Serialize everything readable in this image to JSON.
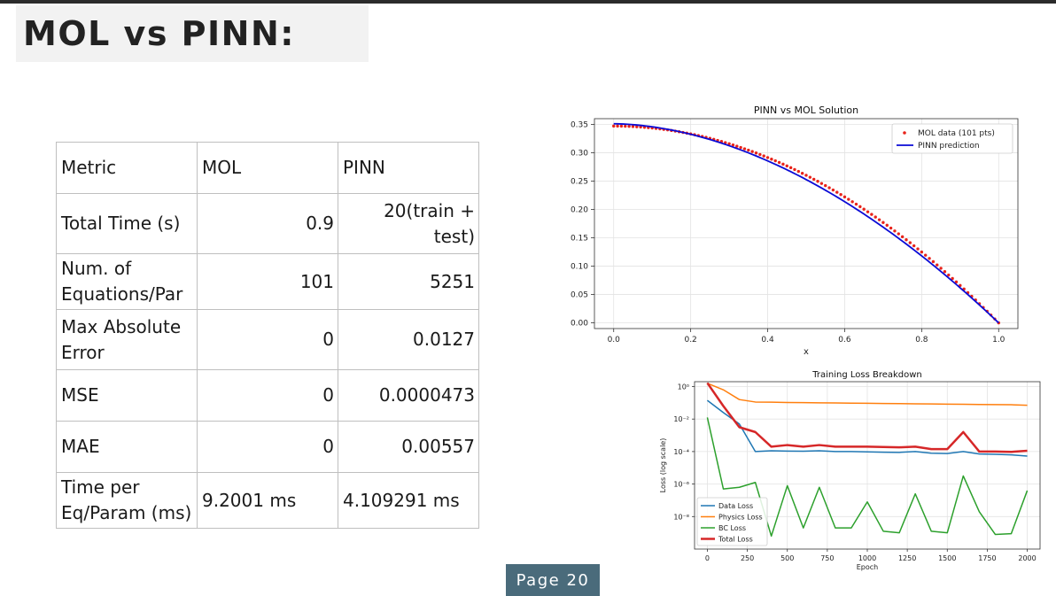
{
  "slide": {
    "title": "MOL vs PINN:",
    "page_label": "Page 20"
  },
  "table": {
    "headers": [
      "Metric",
      "MOL",
      "PINN"
    ],
    "rows": [
      {
        "metric": "Total Time (s)",
        "mol": "0.9",
        "pinn": "20(train + test)"
      },
      {
        "metric": "Num. of Equations/Par",
        "mol": "101",
        "pinn": "5251"
      },
      {
        "metric": "Max Absolute Error",
        "mol": "0",
        "pinn": "0.0127"
      },
      {
        "metric": "MSE",
        "mol": "0",
        "pinn": "0.0000473"
      },
      {
        "metric": "MAE",
        "mol": "0",
        "pinn": "0.00557"
      },
      {
        "metric": "Time per Eq/Param (ms)",
        "mol": "9.2001 ms",
        "pinn": "4.109291 ms"
      }
    ]
  },
  "chart_data": [
    {
      "type": "line",
      "title": "PINN vs MOL Solution",
      "xlabel": "x",
      "ylabel": "",
      "xlim": [
        -0.05,
        1.05
      ],
      "ylim": [
        -0.01,
        0.36
      ],
      "xticks": [
        0.0,
        0.2,
        0.4,
        0.6,
        0.8,
        1.0
      ],
      "xtick_labels": [
        "0.0",
        "0.2",
        "0.4",
        "0.6",
        "0.8",
        "1.0"
      ],
      "yticks": [
        0.0,
        0.05,
        0.1,
        0.15,
        0.2,
        0.25,
        0.3,
        0.35
      ],
      "ytick_labels": [
        "0.00",
        "0.05",
        "0.10",
        "0.15",
        "0.20",
        "0.25",
        "0.30",
        "0.35"
      ],
      "grid": true,
      "legend": "top-right",
      "series": [
        {
          "name": "MOL data (101 pts)",
          "kind": "scatter",
          "color": "#e8231a",
          "model": "mol",
          "x_start": 0.0,
          "x_end": 1.0,
          "n_points": 101
        },
        {
          "name": "PINN prediction",
          "kind": "line",
          "color": "#0a0ad6",
          "model": "pinn",
          "x_start": 0.0,
          "x_end": 1.0
        }
      ]
    },
    {
      "type": "line",
      "title": "Training Loss Breakdown",
      "xlabel": "Epoch",
      "ylabel": "Loss (log scale)",
      "y_scale": "log",
      "xlim": [
        -80,
        2080
      ],
      "ylim_log10": [
        -10,
        0.3
      ],
      "xticks": [
        0,
        250,
        500,
        750,
        1000,
        1250,
        1500,
        1750,
        2000
      ],
      "xtick_labels": [
        "0",
        "250",
        "500",
        "750",
        "1000",
        "1250",
        "1500",
        "1750",
        "2000"
      ],
      "yticks_log10": [
        0,
        -2,
        -4,
        -6,
        -8
      ],
      "ytick_labels": [
        "10⁰",
        "10⁻²",
        "10⁻⁴",
        "10⁻⁶",
        "10⁻⁸"
      ],
      "grid": true,
      "legend": "bottom-left",
      "x": [
        0,
        100,
        200,
        300,
        400,
        500,
        600,
        700,
        800,
        900,
        1000,
        1100,
        1200,
        1300,
        1400,
        1500,
        1600,
        1700,
        1800,
        1900,
        2000
      ],
      "series": [
        {
          "name": "Data Loss",
          "color": "#1f77b4",
          "width": 1.5,
          "log10_values": [
            -0.85,
            -1.6,
            -2.3,
            -4.0,
            -3.95,
            -3.97,
            -3.98,
            -3.95,
            -4.0,
            -4.0,
            -4.02,
            -4.04,
            -4.05,
            -4.0,
            -4.1,
            -4.12,
            -4.0,
            -4.15,
            -4.17,
            -4.2,
            -4.28
          ]
        },
        {
          "name": "Physics Loss",
          "color": "#ff7f0e",
          "width": 1.5,
          "log10_values": [
            0.2,
            -0.2,
            -0.8,
            -0.95,
            -0.96,
            -0.98,
            -0.99,
            -1.0,
            -1.01,
            -1.02,
            -1.03,
            -1.04,
            -1.05,
            -1.06,
            -1.07,
            -1.08,
            -1.09,
            -1.1,
            -1.11,
            -1.12,
            -1.15
          ]
        },
        {
          "name": "BC Loss",
          "color": "#2ca02c",
          "width": 1.5,
          "log10_values": [
            -1.9,
            -6.3,
            -6.2,
            -5.9,
            -9.2,
            -6.1,
            -8.7,
            -6.2,
            -8.7,
            -8.7,
            -7.1,
            -8.9,
            -9.0,
            -6.6,
            -8.9,
            -9.0,
            -5.5,
            -7.7,
            -9.1,
            -9.05,
            -6.4
          ]
        },
        {
          "name": "Total Loss",
          "color": "#d62728",
          "width": 2.5,
          "log10_values": [
            0.22,
            -1.2,
            -2.5,
            -2.8,
            -3.7,
            -3.6,
            -3.7,
            -3.6,
            -3.7,
            -3.7,
            -3.7,
            -3.72,
            -3.74,
            -3.7,
            -3.85,
            -3.85,
            -2.8,
            -4.0,
            -4.0,
            -4.02,
            -3.95
          ]
        }
      ]
    }
  ]
}
